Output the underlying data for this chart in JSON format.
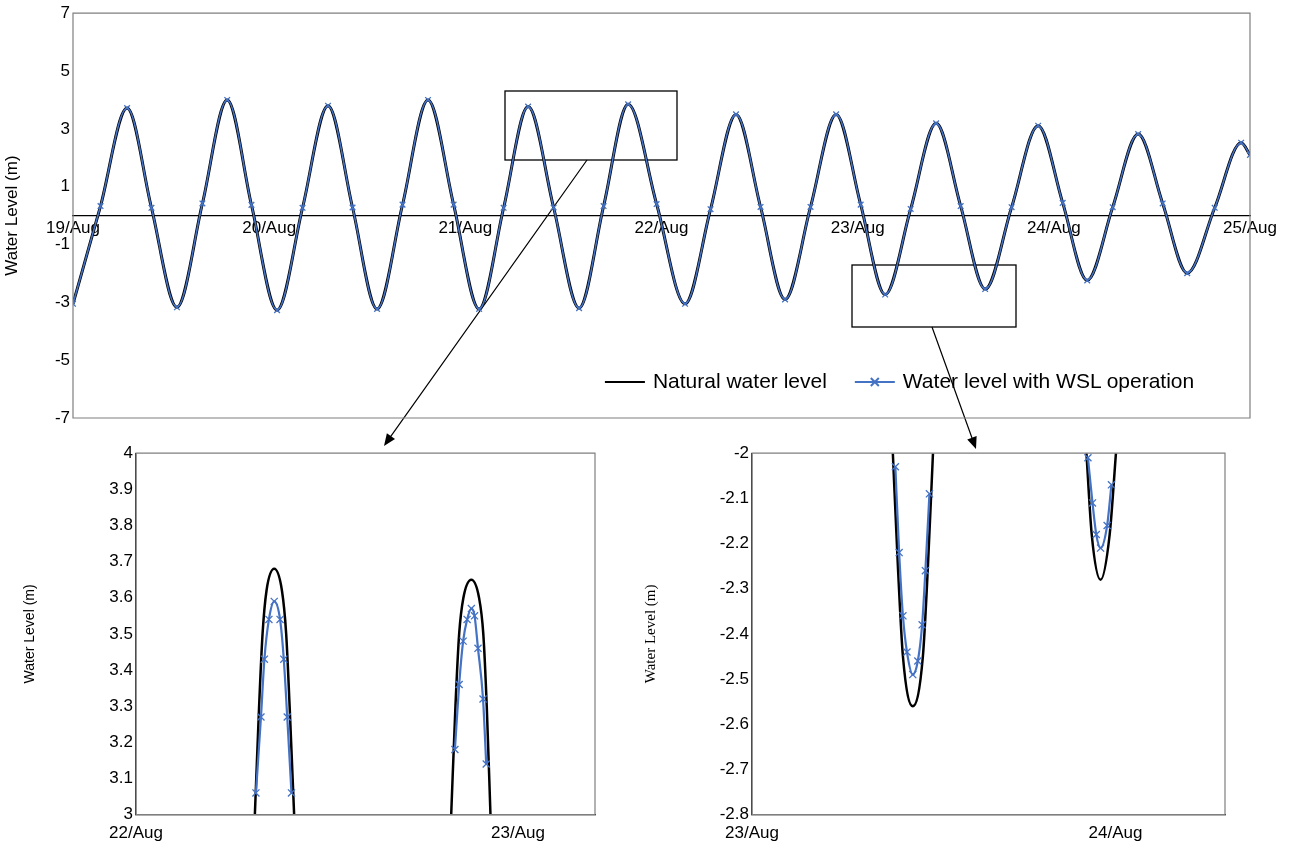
{
  "chart_data": [
    {
      "type": "line",
      "ylabel": "Water Level (m)",
      "xlim": [
        "--08-19",
        "--08-25"
      ],
      "xticks": [
        {
          "value": "--08-19",
          "label": "19/Aug"
        },
        {
          "value": "--08-20",
          "label": "20/Aug"
        },
        {
          "value": "--08-21",
          "label": "21/Aug"
        },
        {
          "value": "--08-22",
          "label": "22/Aug"
        },
        {
          "value": "--08-23",
          "label": "23/Aug"
        },
        {
          "value": "--08-24",
          "label": "24/Aug"
        },
        {
          "value": "--08-25",
          "label": "25/Aug"
        }
      ],
      "ylim": [
        -7,
        7
      ],
      "yticks": [
        -7,
        -5,
        -3,
        -1,
        1,
        3,
        5,
        7
      ],
      "legend": "bottom right",
      "x": [
        "--08-19T00:00",
        "--08-19T03:22",
        "--08-19T06:37",
        "--08-19T09:36",
        "--08-19T12:43",
        "--08-19T15:50",
        "--08-19T18:52",
        "--08-19T21:50",
        "--08-20T00:58",
        "--08-20T04:05",
        "--08-20T07:12",
        "--08-20T10:12",
        "--08-20T13:12",
        "--08-20T16:19",
        "--08-20T19:26",
        "--08-20T22:34",
        "--08-21T01:41",
        "--08-21T04:41",
        "--08-21T07:41",
        "--08-21T10:48",
        "--08-21T13:55",
        "--08-21T16:55",
        "--08-21T19:55",
        "--08-21T23:24",
        "--08-22T02:53",
        "--08-22T06:00",
        "--08-22T09:07",
        "--08-22T12:07",
        "--08-22T15:07",
        "--08-22T18:14",
        "--08-22T21:22",
        "--08-23T00:22",
        "--08-23T03:22",
        "--08-23T06:29",
        "--08-23T09:36",
        "--08-23T12:36",
        "--08-23T15:36",
        "--08-23T18:50",
        "--08-23T22:05",
        "--08-24T01:05",
        "--08-24T04:05",
        "--08-24T07:12",
        "--08-24T10:19",
        "--08-24T13:19",
        "--08-24T16:19",
        "--08-24T19:41",
        "--08-24T22:55",
        "--08-25T00:00"
      ],
      "series": [
        {
          "name": "Natural water level",
          "color": "#000000",
          "marker": "none",
          "values": [
            -3.05,
            0.33,
            3.72,
            0.27,
            -3.17,
            0.42,
            4.0,
            0.37,
            -3.27,
            0.27,
            3.8,
            0.28,
            -3.23,
            0.38,
            4.0,
            0.38,
            -3.23,
            0.27,
            3.77,
            0.28,
            -3.2,
            0.33,
            3.85,
            0.4,
            -3.05,
            0.22,
            3.5,
            0.3,
            -2.9,
            0.3,
            3.5,
            0.38,
            -2.73,
            0.23,
            3.19,
            0.33,
            -2.54,
            0.29,
            3.11,
            0.44,
            -2.24,
            0.29,
            2.82,
            0.42,
            -1.99,
            0.27,
            2.52,
            2.1
          ]
        },
        {
          "name": "Water level with WSL operation",
          "color": "#4472c4",
          "marker": "cross",
          "values": [
            -3.05,
            0.33,
            3.72,
            0.27,
            -3.17,
            0.42,
            4.0,
            0.37,
            -3.27,
            0.27,
            3.8,
            0.28,
            -3.23,
            0.38,
            4.0,
            0.38,
            -3.23,
            0.27,
            3.77,
            0.28,
            -3.2,
            0.33,
            3.85,
            0.4,
            -3.05,
            0.22,
            3.5,
            0.3,
            -2.9,
            0.3,
            3.5,
            0.38,
            -2.73,
            0.23,
            3.19,
            0.33,
            -2.54,
            0.29,
            3.11,
            0.44,
            -2.24,
            0.29,
            2.82,
            0.42,
            -1.99,
            0.27,
            2.52,
            2.1
          ]
        }
      ]
    },
    {
      "type": "line",
      "ylabel": "Water Level (m)",
      "xlim": [
        "--08-22",
        "--08-23T04:50"
      ],
      "xticks": [
        {
          "value": "--08-22",
          "label": "22/Aug"
        },
        {
          "value": "--08-23",
          "label": "23/Aug"
        }
      ],
      "ylim": [
        3,
        4
      ],
      "yticks": [
        3,
        3.1,
        3.2,
        3.3,
        3.4,
        3.5,
        3.6,
        3.7,
        3.8,
        3.9,
        4
      ],
      "series": [
        {
          "color": "#000000",
          "marker": "none",
          "x": [
            "--08-22T07:28",
            "--08-22T07:44",
            "--08-22T07:57",
            "--08-22T08:12",
            "--08-22T08:41",
            "--08-22T09:10",
            "--08-22T09:26",
            "--08-22T09:39",
            "--08-22T09:56",
            "--08-22T15:00",
            "--08-22T19:48",
            "--08-22T20:04",
            "--08-22T20:18",
            "--08-22T20:34",
            "--08-22T21:04",
            "--08-22T21:33",
            "--08-22T21:49",
            "--08-22T22:02",
            "--08-22T22:16"
          ],
          "values": [
            3.0,
            3.3,
            3.5,
            3.62,
            3.68,
            3.62,
            3.5,
            3.3,
            3.0,
            null,
            3.0,
            3.3,
            3.5,
            3.6,
            3.65,
            3.6,
            3.5,
            3.3,
            3.0
          ]
        },
        {
          "color": "#4472c4",
          "marker": "cross",
          "x": [
            "--08-22T07:32",
            "--08-22T07:51",
            "--08-22T08:04",
            "--08-22T08:21",
            "--08-22T08:41",
            "--08-22T09:03",
            "--08-22T09:17",
            "--08-22T09:30",
            "--08-22T09:46",
            "--08-22T15:00",
            "--08-22T20:02",
            "--08-22T20:18",
            "--08-22T20:33",
            "--08-22T20:48",
            "--08-22T21:04",
            "--08-22T21:16",
            "--08-22T21:29",
            "--08-22T21:48",
            "--08-22T22:00"
          ],
          "values": [
            3.06,
            3.27,
            3.43,
            3.54,
            3.59,
            3.54,
            3.43,
            3.27,
            3.06,
            null,
            3.18,
            3.36,
            3.48,
            3.54,
            3.57,
            3.55,
            3.46,
            3.32,
            3.14
          ]
        }
      ]
    },
    {
      "type": "line",
      "ylabel": "Water Level (m)",
      "xlim": [
        "--08-23",
        "--08-24T07:14"
      ],
      "xticks": [
        {
          "value": "--08-23",
          "label": "23/Aug"
        },
        {
          "value": "--08-24",
          "label": "24/Aug"
        }
      ],
      "ylim": [
        -2.8,
        -2
      ],
      "yticks": [
        -2.8,
        -2.7,
        -2.6,
        -2.5,
        -2.4,
        -2.3,
        -2.2,
        -2.1,
        -2
      ],
      "series": [
        {
          "color": "#000000",
          "marker": "none",
          "x": [
            "--08-23T09:18",
            "--08-23T09:38",
            "--08-23T09:58",
            "--08-23T10:37",
            "--08-23T11:17",
            "--08-23T11:37",
            "--08-23T11:57",
            "--08-23T17:00",
            "--08-23T22:05",
            "--08-23T22:26",
            "--08-23T23:01",
            "--08-23T23:37",
            "--08-24T00:02"
          ],
          "values": [
            -2.0,
            -2.25,
            -2.45,
            -2.56,
            -2.45,
            -2.25,
            -2.0,
            null,
            -2.0,
            -2.18,
            -2.28,
            -2.18,
            -2.0
          ]
        },
        {
          "color": "#4472c4",
          "marker": "cross",
          "x": [
            "--08-23T09:28",
            "--08-23T09:43",
            "--08-23T09:58",
            "--08-23T10:14",
            "--08-23T10:37",
            "--08-23T10:57",
            "--08-23T11:14",
            "--08-23T11:27",
            "--08-23T11:43",
            "--08-23T17:00",
            "--08-23T22:11",
            "--08-23T22:29",
            "--08-23T22:44",
            "--08-23T23:01",
            "--08-23T23:27",
            "--08-23T23:44"
          ],
          "values": [
            -2.03,
            -2.22,
            -2.36,
            -2.44,
            -2.49,
            -2.46,
            -2.38,
            -2.26,
            -2.09,
            null,
            -2.01,
            -2.11,
            -2.18,
            -2.21,
            -2.16,
            -2.07
          ]
        }
      ]
    }
  ]
}
